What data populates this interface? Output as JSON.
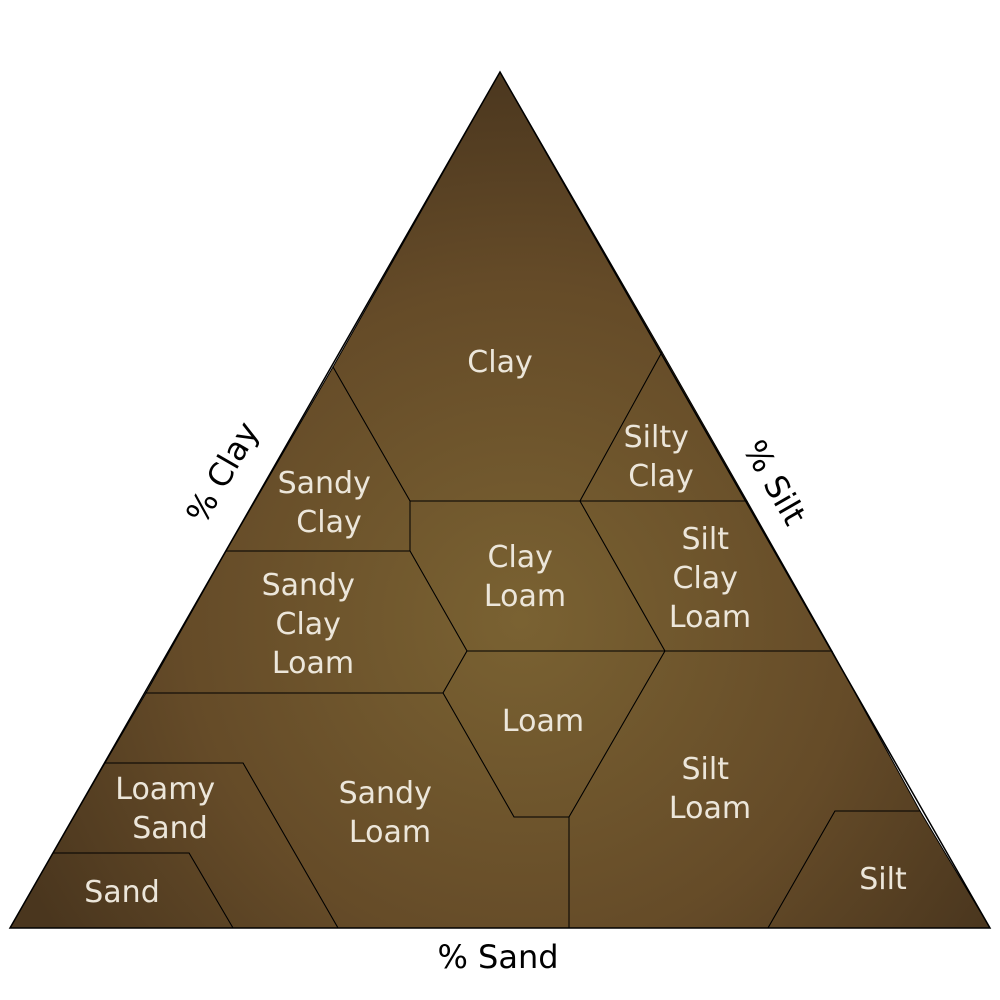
{
  "colors": {
    "region_fill_center": "#7a6232",
    "region_fill_edge": "#4a361e",
    "label_text": "#ece6da",
    "axis_text": "#000000"
  },
  "axes": {
    "clay": "% Clay",
    "silt": "% Silt",
    "sand": "% Sand"
  },
  "regions": {
    "clay": [
      "Clay"
    ],
    "silty_clay": [
      "Silty",
      "Clay"
    ],
    "sandy_clay": [
      "Sandy",
      "Clay"
    ],
    "clay_loam": [
      "Clay",
      "Loam"
    ],
    "silty_clay_loam": [
      "Silt",
      "Clay",
      "Loam"
    ],
    "sandy_clay_loam": [
      "Sandy",
      "Clay",
      "Loam"
    ],
    "loam": [
      "Loam"
    ],
    "sandy_loam": [
      "Sandy",
      "Loam"
    ],
    "silt_loam": [
      "Silt",
      "Loam"
    ],
    "loamy_sand": [
      "Loamy",
      "Sand"
    ],
    "sand": [
      "Sand"
    ],
    "silt": [
      "Silt"
    ]
  }
}
